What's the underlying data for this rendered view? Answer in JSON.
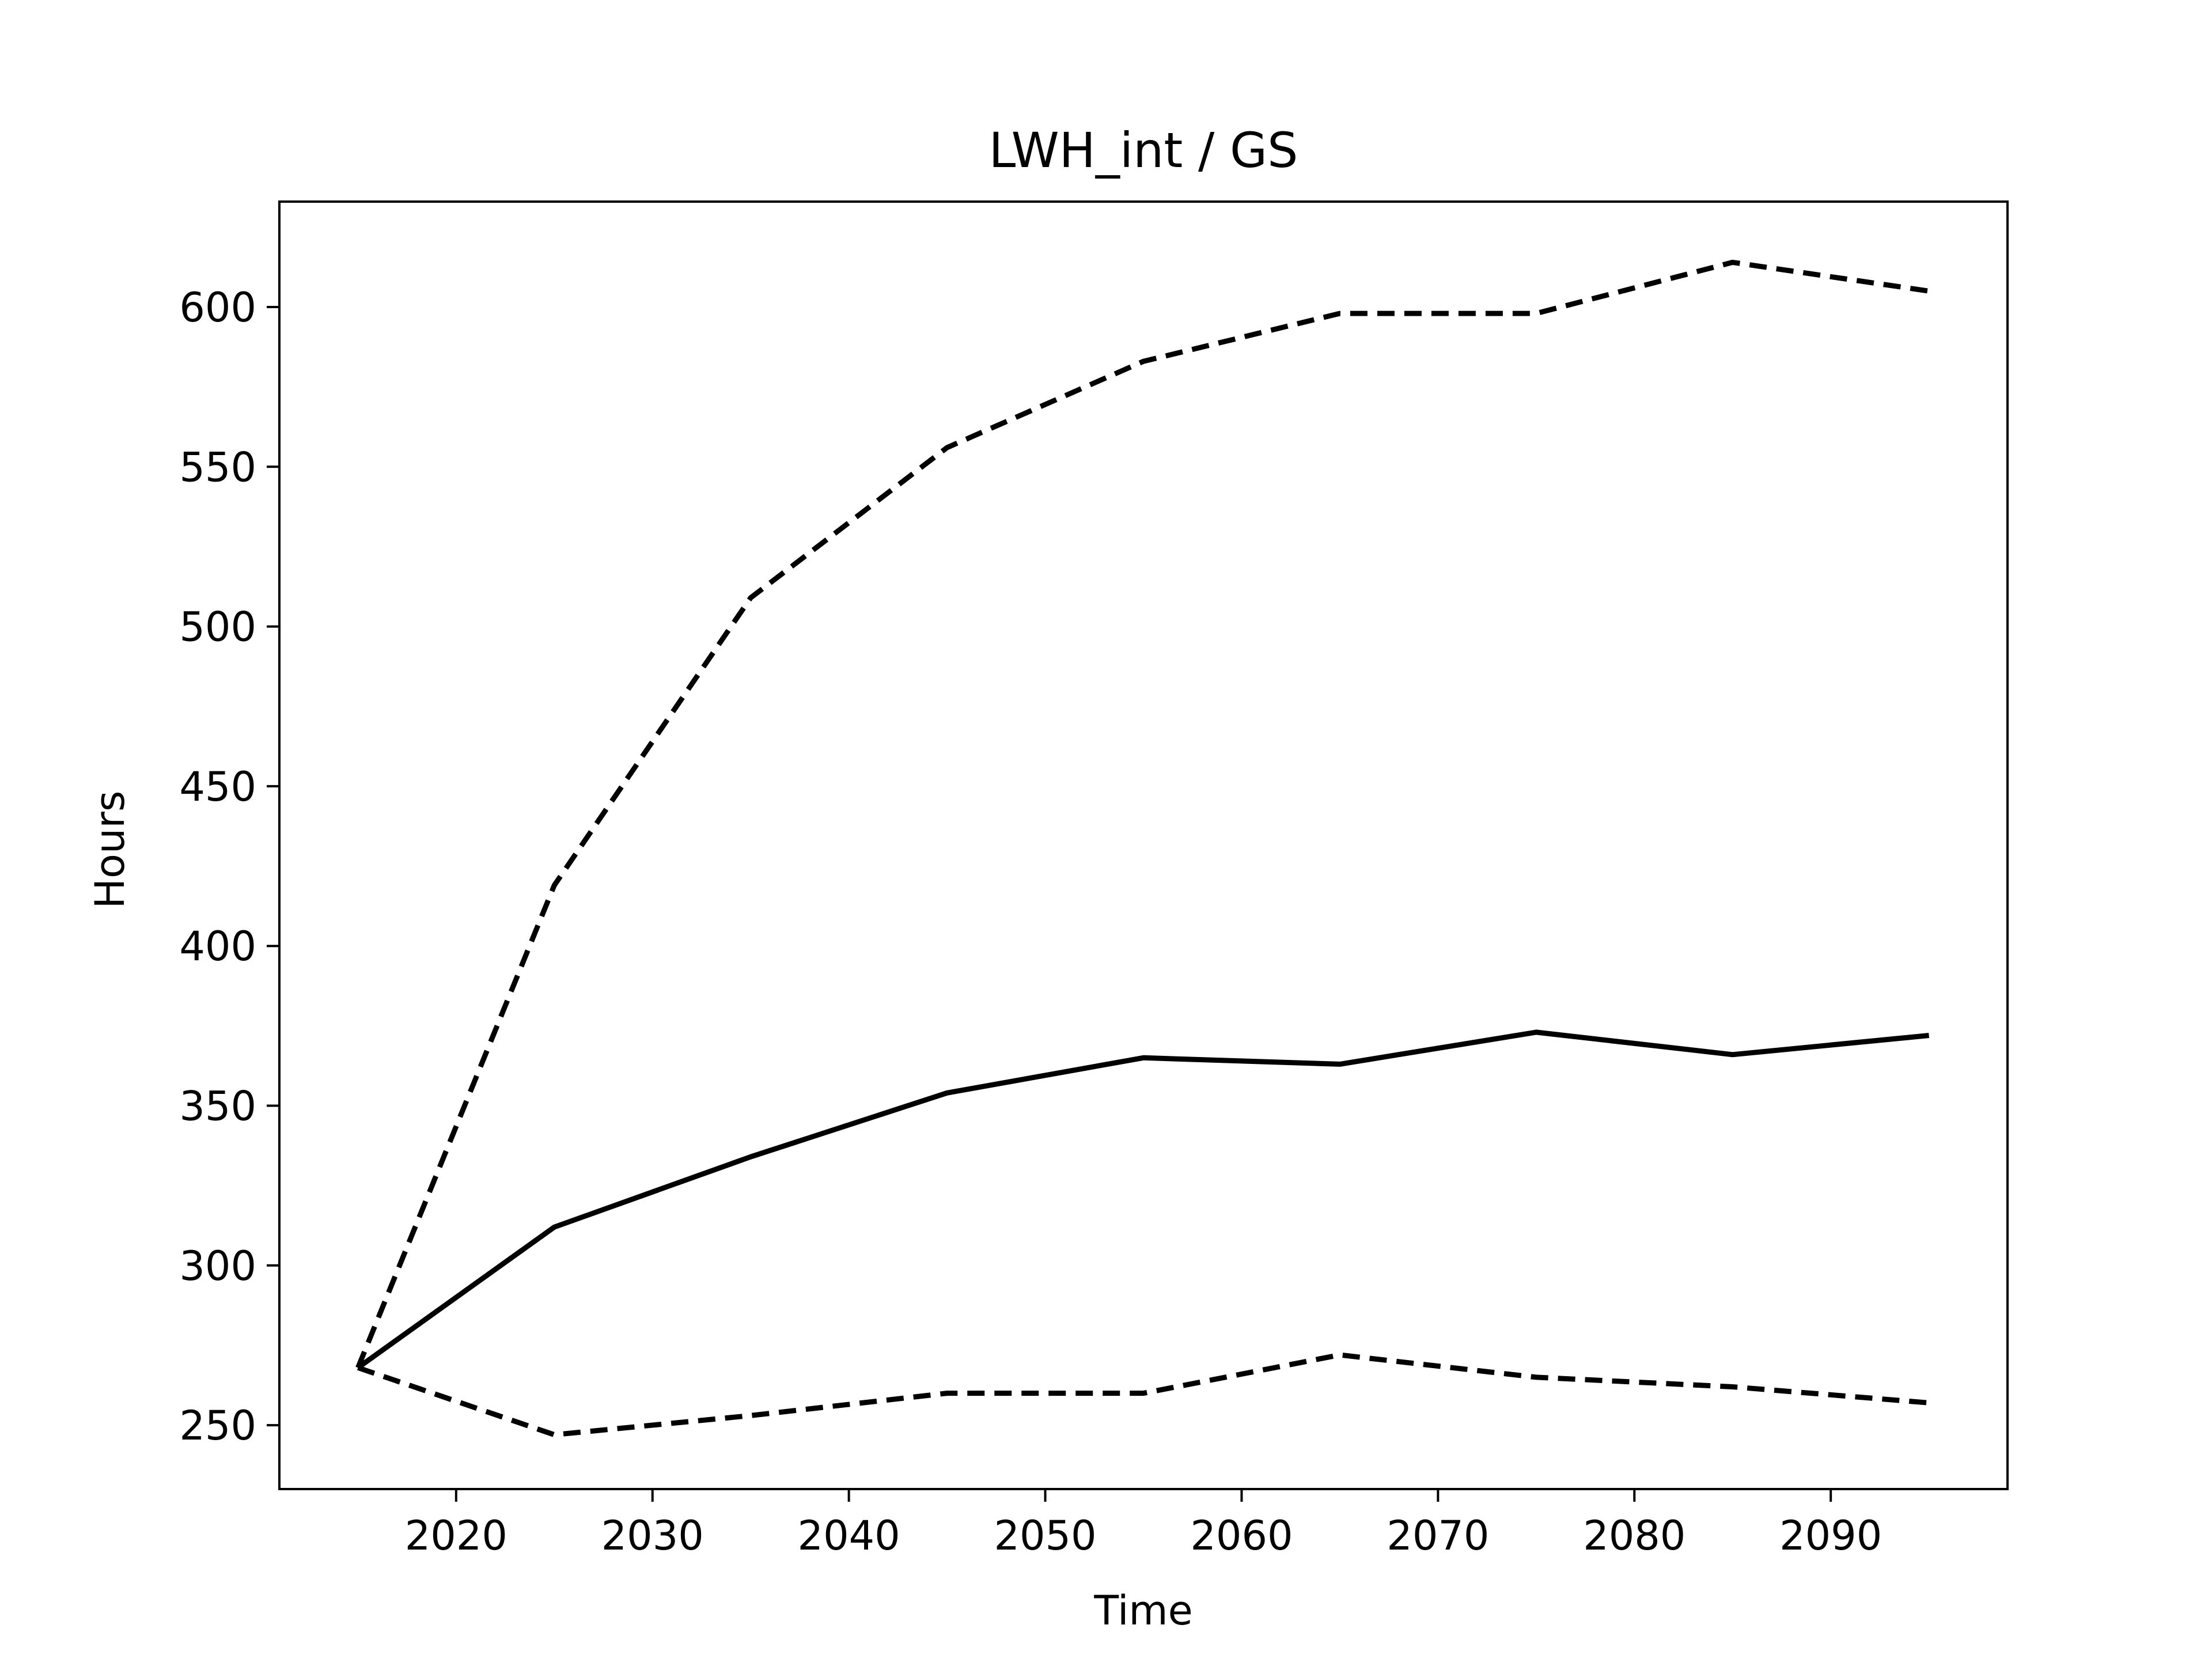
{
  "chart_data": {
    "type": "line",
    "title": "LWH_int / GS",
    "xlabel": "Time",
    "ylabel": "Hours",
    "xlim": [
      2011,
      2099
    ],
    "ylim": [
      230,
      633
    ],
    "xticks": [
      2020,
      2030,
      2040,
      2050,
      2060,
      2070,
      2080,
      2090
    ],
    "yticks": [
      250,
      300,
      350,
      400,
      450,
      500,
      550,
      600
    ],
    "grid": false,
    "x": [
      2015,
      2025,
      2035,
      2045,
      2055,
      2065,
      2075,
      2085,
      2095
    ],
    "series": [
      {
        "style": "solid",
        "color": "#000000",
        "values": [
          268,
          312,
          334,
          354,
          365,
          363,
          373,
          366,
          372
        ]
      },
      {
        "style": "dashed",
        "color": "#000000",
        "values": [
          268,
          419,
          509,
          556,
          583,
          598,
          598,
          614,
          605
        ]
      },
      {
        "style": "dashed",
        "color": "#000000",
        "values": [
          268,
          247,
          253,
          260,
          260,
          272,
          265,
          262,
          257
        ]
      }
    ]
  }
}
